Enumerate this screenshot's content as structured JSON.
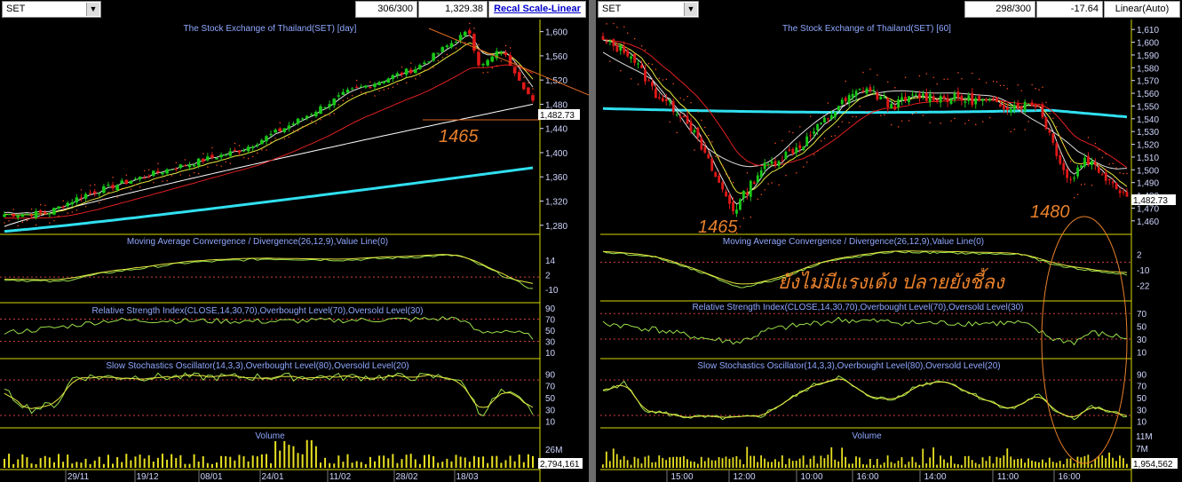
{
  "left": {
    "symbol": "SET",
    "count": "306/300",
    "last": "1,329.38",
    "scale_label": "Recal Scale-Linear",
    "title": "The Stock Exchange of Thailand(SET) [day]",
    "price_ticks": [
      "1,600",
      "1,560",
      "1,520",
      "1,480",
      "1,440",
      "1,400",
      "1,360",
      "1,320",
      "1,280"
    ],
    "price_tag": "1,482.73",
    "annotation": "1465",
    "macd_title": "Moving Average Convergence / Divergence(26,12,9),Value Line(0)",
    "macd_ticks": [
      "14",
      "2",
      "-10"
    ],
    "rsi_title": "Relative Strength Index(CLOSE,14,30,70),Overbought Level(70),Oversold Level(30)",
    "rsi_ticks": [
      "90",
      "70",
      "50",
      "30",
      "10"
    ],
    "stoch_title": "Slow Stochastics Oscillator(14,3,3),Overbought Level(80),Oversold Level(20)",
    "stoch_ticks": [
      "90",
      "70",
      "50",
      "30",
      "10"
    ],
    "volume_title": "Volume",
    "volume_ticks": [
      "26M"
    ],
    "volume_tag": "2,794,161",
    "dates": [
      "29/11",
      "19/12",
      "08/01",
      "24/01",
      "11/02",
      "28/02",
      "18/03"
    ]
  },
  "right": {
    "symbol": "SET",
    "count": "298/300",
    "last": "-17.64",
    "scale_label": "Linear(Auto)",
    "title": "The Stock Exchange of Thailand(SET) [60]",
    "price_ticks": [
      "1,610",
      "1,600",
      "1,590",
      "1,580",
      "1,570",
      "1,560",
      "1,550",
      "1,540",
      "1,530",
      "1,520",
      "1,510",
      "1,500",
      "1,490",
      "1,480",
      "1,470",
      "1,460"
    ],
    "price_tag": "1,482.73",
    "annotation_a": "1465",
    "annotation_b": "1480",
    "thai_note": "ยังไม่มีแรงเด้ง ปลายยังชี้ลง",
    "macd_title": "Moving Average Convergence / Divergence(26,12,9),Value Line(0)",
    "macd_ticks": [
      "2",
      "-10",
      "-22"
    ],
    "rsi_title": "Relative Strength Index(CLOSE,14,30,70),Overbought Level(70),Oversold Level(30)",
    "rsi_ticks": [
      "70",
      "50",
      "30",
      "10"
    ],
    "stoch_title": "Slow Stochastics Oscillator(14,3,3),Overbought Level(80),Oversold Level(20)",
    "stoch_ticks": [
      "90",
      "70",
      "50",
      "30",
      "10"
    ],
    "volume_title": "Volume",
    "volume_ticks": [
      "11M",
      "7M"
    ],
    "volume_tag": "1,954,562",
    "times": [
      "15:00",
      "12:00",
      "10:00",
      "16:00",
      "14:00",
      "11:00",
      "16:00"
    ]
  },
  "chart_data": [
    {
      "type": "candlestick",
      "title": "The Stock Exchange of Thailand(SET) [day]",
      "x": [
        "29/11",
        "19/12",
        "08/01",
        "24/01",
        "11/02",
        "28/02",
        "18/03"
      ],
      "close_approx": [
        1298,
        1330,
        1385,
        1435,
        1510,
        1555,
        1600,
        1482.73
      ],
      "ylim": [
        1265,
        1620
      ],
      "overlays": [
        "moving averages",
        "parabolic SAR",
        "trendline",
        "horizontal line 1465"
      ]
    },
    {
      "type": "candlestick",
      "title": "The Stock Exchange of Thailand(SET) [60]",
      "x": [
        "15:00",
        "12:00",
        "10:00",
        "16:00",
        "14:00",
        "11:00",
        "16:00"
      ],
      "close_approx": [
        1600,
        1575,
        1540,
        1465,
        1510,
        1560,
        1550,
        1545,
        1510,
        1482.73
      ],
      "ylim": [
        1455,
        1615
      ],
      "overlays": [
        "moving averages",
        "parabolic SAR"
      ]
    }
  ]
}
